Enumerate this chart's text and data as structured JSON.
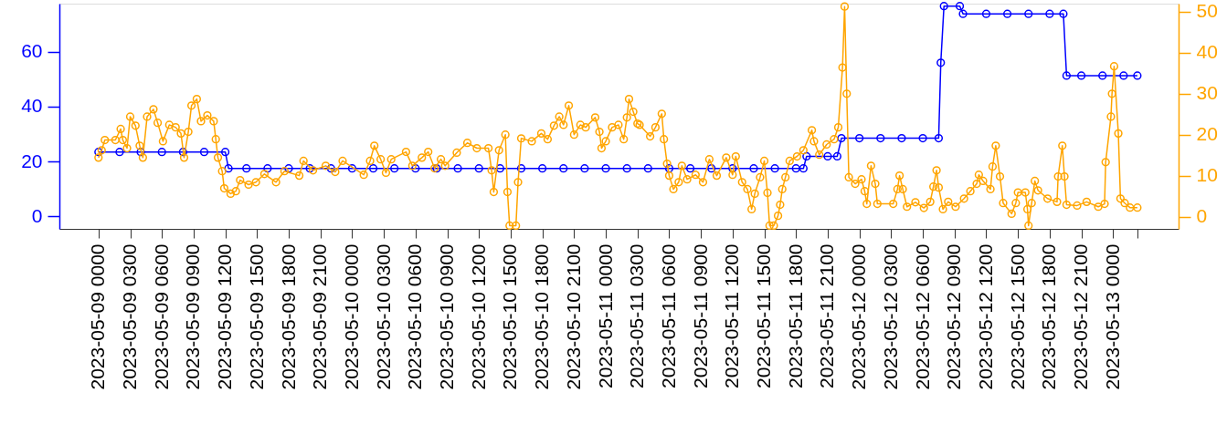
{
  "chart_data": {
    "type": "line",
    "marker": "circle",
    "line_style": "solid",
    "grid": false,
    "xlim": [
      "2023-05-08T20:18",
      "2023-05-13T06:12"
    ],
    "xticks": [
      {
        "value": "2023-05-09T00:00",
        "label": "2023-05-09 0000"
      },
      {
        "value": "2023-05-09T03:00",
        "label": "2023-05-09 0300"
      },
      {
        "value": "2023-05-09T06:00",
        "label": "2023-05-09 0600"
      },
      {
        "value": "2023-05-09T09:00",
        "label": "2023-05-09 0900"
      },
      {
        "value": "2023-05-09T12:00",
        "label": "2023-05-09 1200"
      },
      {
        "value": "2023-05-09T15:00",
        "label": "2023-05-09 1500"
      },
      {
        "value": "2023-05-09T18:00",
        "label": "2023-05-09 1800"
      },
      {
        "value": "2023-05-09T21:00",
        "label": "2023-05-09 2100"
      },
      {
        "value": "2023-05-10T00:00",
        "label": "2023-05-10 0000"
      },
      {
        "value": "2023-05-10T03:00",
        "label": "2023-05-10 0300"
      },
      {
        "value": "2023-05-10T06:00",
        "label": "2023-05-10 0600"
      },
      {
        "value": "2023-05-10T09:00",
        "label": "2023-05-10 0900"
      },
      {
        "value": "2023-05-10T12:00",
        "label": "2023-05-10 1200"
      },
      {
        "value": "2023-05-10T15:00",
        "label": "2023-05-10 1500"
      },
      {
        "value": "2023-05-10T18:00",
        "label": "2023-05-10 1800"
      },
      {
        "value": "2023-05-10T21:00",
        "label": "2023-05-10 2100"
      },
      {
        "value": "2023-05-11T00:00",
        "label": "2023-05-11 0000"
      },
      {
        "value": "2023-05-11T03:00",
        "label": "2023-05-11 0300"
      },
      {
        "value": "2023-05-11T06:00",
        "label": "2023-05-11 0600"
      },
      {
        "value": "2023-05-11T09:00",
        "label": "2023-05-11 0900"
      },
      {
        "value": "2023-05-11T12:00",
        "label": "2023-05-11 1200"
      },
      {
        "value": "2023-05-11T15:00",
        "label": "2023-05-11 1500"
      },
      {
        "value": "2023-05-11T18:00",
        "label": "2023-05-11 1800"
      },
      {
        "value": "2023-05-11T21:00",
        "label": "2023-05-11 2100"
      },
      {
        "value": "2023-05-12T00:00",
        "label": "2023-05-12 0000"
      },
      {
        "value": "2023-05-12T03:00",
        "label": "2023-05-12 0300"
      },
      {
        "value": "2023-05-12T06:00",
        "label": "2023-05-12 0600"
      },
      {
        "value": "2023-05-12T09:00",
        "label": "2023-05-12 0900"
      },
      {
        "value": "2023-05-12T12:00",
        "label": "2023-05-12 1200"
      },
      {
        "value": "2023-05-12T15:00",
        "label": "2023-05-12 1500"
      },
      {
        "value": "2023-05-12T18:00",
        "label": "2023-05-12 1800"
      },
      {
        "value": "2023-05-12T21:00",
        "label": "2023-05-12 2100"
      },
      {
        "value": "2023-05-13T00:00",
        "label": "2023-05-13 0000"
      },
      {
        "value": "2023-05-13T02:18",
        "label": null
      }
    ],
    "ylim": [
      -4.5,
      77.5
    ],
    "yticks": [
      0,
      20,
      40,
      60
    ],
    "y2lim": [
      -3,
      52
    ],
    "y2ticks": [
      0,
      10,
      20,
      30,
      40,
      50
    ],
    "series": [
      {
        "color": "#0000ff",
        "axis": "y",
        "x": [
          "2023-05-09T00:00",
          "2023-05-09T02:00",
          "2023-05-09T04:00",
          "2023-05-09T06:00",
          "2023-05-09T08:00",
          "2023-05-09T10:00",
          "2023-05-09T12:00",
          "2023-05-09T12:18",
          "2023-05-09T14:00",
          "2023-05-09T16:00",
          "2023-05-09T18:00",
          "2023-05-09T20:00",
          "2023-05-09T22:00",
          "2023-05-10T00:00",
          "2023-05-10T02:00",
          "2023-05-10T04:00",
          "2023-05-10T06:00",
          "2023-05-10T08:00",
          "2023-05-10T10:00",
          "2023-05-10T12:00",
          "2023-05-10T14:00",
          "2023-05-10T16:00",
          "2023-05-10T18:00",
          "2023-05-10T20:00",
          "2023-05-10T22:00",
          "2023-05-11T00:00",
          "2023-05-11T02:00",
          "2023-05-11T04:00",
          "2023-05-11T06:00",
          "2023-05-11T08:00",
          "2023-05-11T10:00",
          "2023-05-11T12:00",
          "2023-05-11T14:00",
          "2023-05-11T16:00",
          "2023-05-11T18:00",
          "2023-05-11T18:42",
          "2023-05-11T19:00",
          "2023-05-11T21:00",
          "2023-05-11T21:54",
          "2023-05-11T22:18",
          "2023-05-12T00:00",
          "2023-05-12T02:00",
          "2023-05-12T04:00",
          "2023-05-12T06:00",
          "2023-05-12T07:30",
          "2023-05-12T07:42",
          "2023-05-12T08:00",
          "2023-05-12T09:30",
          "2023-05-12T09:48",
          "2023-05-12T12:00",
          "2023-05-12T14:00",
          "2023-05-12T16:00",
          "2023-05-12T18:00",
          "2023-05-12T19:18",
          "2023-05-12T19:36",
          "2023-05-12T21:00",
          "2023-05-12T23:00",
          "2023-05-13T01:00",
          "2023-05-13T02:18"
        ],
        "values": [
          23.5,
          23.5,
          23.5,
          23.5,
          23.5,
          23.5,
          23.5,
          17.5,
          17.5,
          17.5,
          17.5,
          17.5,
          17.5,
          17.5,
          17.5,
          17.5,
          17.5,
          17.5,
          17.5,
          17.5,
          17.5,
          17.5,
          17.5,
          17.5,
          17.5,
          17.5,
          17.5,
          17.5,
          17.5,
          17.5,
          17.5,
          17.5,
          17.5,
          17.5,
          17.5,
          17.5,
          21.9,
          21.9,
          21.9,
          28.5,
          28.5,
          28.5,
          28.5,
          28.5,
          28.5,
          56,
          76.6,
          76.6,
          73.8,
          73.8,
          73.8,
          73.8,
          73.8,
          73.8,
          51.3,
          51.3,
          51.3,
          51.3,
          51.3
        ]
      },
      {
        "color": "#ffa500",
        "axis": "y2",
        "x": [
          "2023-05-09T00:00",
          "2023-05-09T00:18",
          "2023-05-09T00:36",
          "2023-05-09T01:36",
          "2023-05-09T02:06",
          "2023-05-09T02:18",
          "2023-05-09T02:42",
          "2023-05-09T03:00",
          "2023-05-09T03:30",
          "2023-05-09T03:54",
          "2023-05-09T04:12",
          "2023-05-09T04:36",
          "2023-05-09T05:12",
          "2023-05-09T05:36",
          "2023-05-09T06:06",
          "2023-05-09T06:42",
          "2023-05-09T07:18",
          "2023-05-09T07:48",
          "2023-05-09T08:06",
          "2023-05-09T08:30",
          "2023-05-09T08:48",
          "2023-05-09T09:18",
          "2023-05-09T09:42",
          "2023-05-09T10:18",
          "2023-05-09T10:54",
          "2023-05-09T11:06",
          "2023-05-09T11:18",
          "2023-05-09T11:42",
          "2023-05-09T11:54",
          "2023-05-09T12:30",
          "2023-05-09T13:00",
          "2023-05-09T13:24",
          "2023-05-09T14:12",
          "2023-05-09T14:54",
          "2023-05-09T15:42",
          "2023-05-09T16:48",
          "2023-05-09T17:36",
          "2023-05-09T19:00",
          "2023-05-09T19:24",
          "2023-05-09T20:18",
          "2023-05-09T21:30",
          "2023-05-09T22:24",
          "2023-05-09T23:06",
          "2023-05-10T01:06",
          "2023-05-10T01:42",
          "2023-05-10T02:06",
          "2023-05-10T02:42",
          "2023-05-10T03:12",
          "2023-05-10T03:42",
          "2023-05-10T05:06",
          "2023-05-10T05:42",
          "2023-05-10T06:36",
          "2023-05-10T07:12",
          "2023-05-10T07:48",
          "2023-05-10T08:24",
          "2023-05-10T08:48",
          "2023-05-10T09:54",
          "2023-05-10T10:54",
          "2023-05-10T11:48",
          "2023-05-10T12:54",
          "2023-05-10T13:12",
          "2023-05-10T13:24",
          "2023-05-10T13:54",
          "2023-05-10T14:30",
          "2023-05-10T14:42",
          "2023-05-10T14:54",
          "2023-05-10T15:30",
          "2023-05-10T15:42",
          "2023-05-10T16:00",
          "2023-05-10T17:00",
          "2023-05-10T17:54",
          "2023-05-10T18:30",
          "2023-05-10T19:06",
          "2023-05-10T19:36",
          "2023-05-10T20:00",
          "2023-05-10T20:30",
          "2023-05-10T21:00",
          "2023-05-10T21:36",
          "2023-05-10T22:06",
          "2023-05-10T23:00",
          "2023-05-10T23:24",
          "2023-05-10T23:36",
          "2023-05-11T00:00",
          "2023-05-11T00:36",
          "2023-05-11T01:12",
          "2023-05-11T01:42",
          "2023-05-11T02:00",
          "2023-05-11T02:12",
          "2023-05-11T02:36",
          "2023-05-11T03:00",
          "2023-05-11T03:12",
          "2023-05-11T04:12",
          "2023-05-11T04:42",
          "2023-05-11T05:18",
          "2023-05-11T05:30",
          "2023-05-11T05:48",
          "2023-05-11T06:00",
          "2023-05-11T06:24",
          "2023-05-11T06:54",
          "2023-05-11T07:12",
          "2023-05-11T07:42",
          "2023-05-11T08:30",
          "2023-05-11T09:12",
          "2023-05-11T09:48",
          "2023-05-11T10:30",
          "2023-05-11T11:24",
          "2023-05-11T12:00",
          "2023-05-11T12:18",
          "2023-05-11T12:54",
          "2023-05-11T13:24",
          "2023-05-11T13:48",
          "2023-05-11T14:06",
          "2023-05-11T14:36",
          "2023-05-11T15:00",
          "2023-05-11T15:18",
          "2023-05-11T15:30",
          "2023-05-11T15:54",
          "2023-05-11T16:18",
          "2023-05-11T16:30",
          "2023-05-11T16:42",
          "2023-05-11T17:00",
          "2023-05-11T17:24",
          "2023-05-11T18:06",
          "2023-05-11T18:42",
          "2023-05-11T19:30",
          "2023-05-11T19:42",
          "2023-05-11T20:12",
          "2023-05-11T20:54",
          "2023-05-11T21:36",
          "2023-05-11T22:00",
          "2023-05-11T22:24",
          "2023-05-11T22:36",
          "2023-05-11T22:48",
          "2023-05-11T23:00",
          "2023-05-11T23:36",
          "2023-05-12T00:12",
          "2023-05-12T00:30",
          "2023-05-12T00:42",
          "2023-05-12T01:06",
          "2023-05-12T01:30",
          "2023-05-12T01:42",
          "2023-05-12T03:12",
          "2023-05-12T03:36",
          "2023-05-12T03:48",
          "2023-05-12T04:06",
          "2023-05-12T04:30",
          "2023-05-12T05:18",
          "2023-05-12T06:06",
          "2023-05-12T06:42",
          "2023-05-12T07:00",
          "2023-05-12T07:18",
          "2023-05-12T07:30",
          "2023-05-12T07:54",
          "2023-05-12T08:24",
          "2023-05-12T09:06",
          "2023-05-12T09:54",
          "2023-05-12T10:30",
          "2023-05-12T11:06",
          "2023-05-12T11:18",
          "2023-05-12T11:42",
          "2023-05-12T12:24",
          "2023-05-12T12:36",
          "2023-05-12T12:54",
          "2023-05-12T13:18",
          "2023-05-12T13:36",
          "2023-05-12T14:24",
          "2023-05-12T14:48",
          "2023-05-12T15:00",
          "2023-05-12T15:42",
          "2023-05-12T15:54",
          "2023-05-12T16:00",
          "2023-05-12T16:18",
          "2023-05-12T16:36",
          "2023-05-12T16:54",
          "2023-05-12T17:48",
          "2023-05-12T18:42",
          "2023-05-12T18:48",
          "2023-05-12T19:12",
          "2023-05-12T19:24",
          "2023-05-12T19:36",
          "2023-05-12T20:36",
          "2023-05-12T21:30",
          "2023-05-12T22:36",
          "2023-05-12T23:12",
          "2023-05-12T23:18",
          "2023-05-12T23:48",
          "2023-05-12T23:54",
          "2023-05-13T00:06",
          "2023-05-13T00:30",
          "2023-05-13T00:42",
          "2023-05-13T01:06",
          "2023-05-13T01:36",
          "2023-05-13T02:18"
        ],
        "values": [
          14.4,
          16.2,
          18.7,
          18.7,
          21.4,
          18.7,
          16.7,
          24.4,
          22.2,
          17.3,
          14.4,
          24.4,
          26.2,
          22.9,
          18.4,
          22.4,
          21.8,
          20.3,
          14.4,
          20.7,
          27.1,
          28.7,
          23.3,
          24.7,
          23.3,
          18.9,
          14.4,
          11.1,
          6.9,
          5.6,
          6.2,
          8.9,
          7.8,
          8.4,
          10.4,
          8.4,
          11.1,
          10,
          13.6,
          11.3,
          12.4,
          10.9,
          13.6,
          10.2,
          13.6,
          17.3,
          14,
          10.7,
          14,
          15.8,
          12.4,
          14.4,
          15.8,
          11.8,
          14,
          12.4,
          15.6,
          18,
          16.7,
          16.7,
          11.3,
          6,
          16.2,
          20,
          6,
          -2.2,
          -2.2,
          8.4,
          19.1,
          18.4,
          20.3,
          18.9,
          22.2,
          24.4,
          22.4,
          27.1,
          20,
          22.4,
          21.8,
          24.2,
          20.7,
          16.7,
          18.4,
          21.8,
          22.4,
          18.9,
          24.2,
          28.7,
          25.6,
          22.7,
          22.4,
          19.6,
          21.8,
          25.1,
          18.9,
          12.9,
          10,
          6.7,
          8.4,
          12.4,
          9.1,
          10.2,
          8.4,
          14,
          10,
          14.4,
          10.2,
          14.7,
          8.4,
          6.7,
          1.8,
          5.6,
          9.6,
          13.6,
          5.8,
          -2.2,
          -2.2,
          0.2,
          2.9,
          6.7,
          9.6,
          13.6,
          14.7,
          16.2,
          21.1,
          18.4,
          15.1,
          17.6,
          18.9,
          21.8,
          36.4,
          51.3,
          30,
          9.6,
          8,
          9.1,
          6.2,
          3.1,
          12.4,
          8,
          3.1,
          3.1,
          6.7,
          10,
          6.7,
          2.4,
          3.5,
          2.1,
          3.6,
          7.3,
          11.3,
          7.1,
          1.8,
          3.6,
          2.4,
          4.4,
          6.2,
          8,
          10.2,
          8.7,
          6.7,
          12.2,
          17.3,
          9.8,
          3.3,
          0.7,
          3.3,
          5.9,
          5.9,
          1.8,
          -2.2,
          3.3,
          8.7,
          6.4,
          4.4,
          3.6,
          9.8,
          17.3,
          9.8,
          2.9,
          2.7,
          3.6,
          2.4,
          3.1,
          13.3,
          24.4,
          30,
          36.7,
          20.3,
          4.4,
          3.3,
          2.2,
          2.2
        ]
      }
    ]
  }
}
